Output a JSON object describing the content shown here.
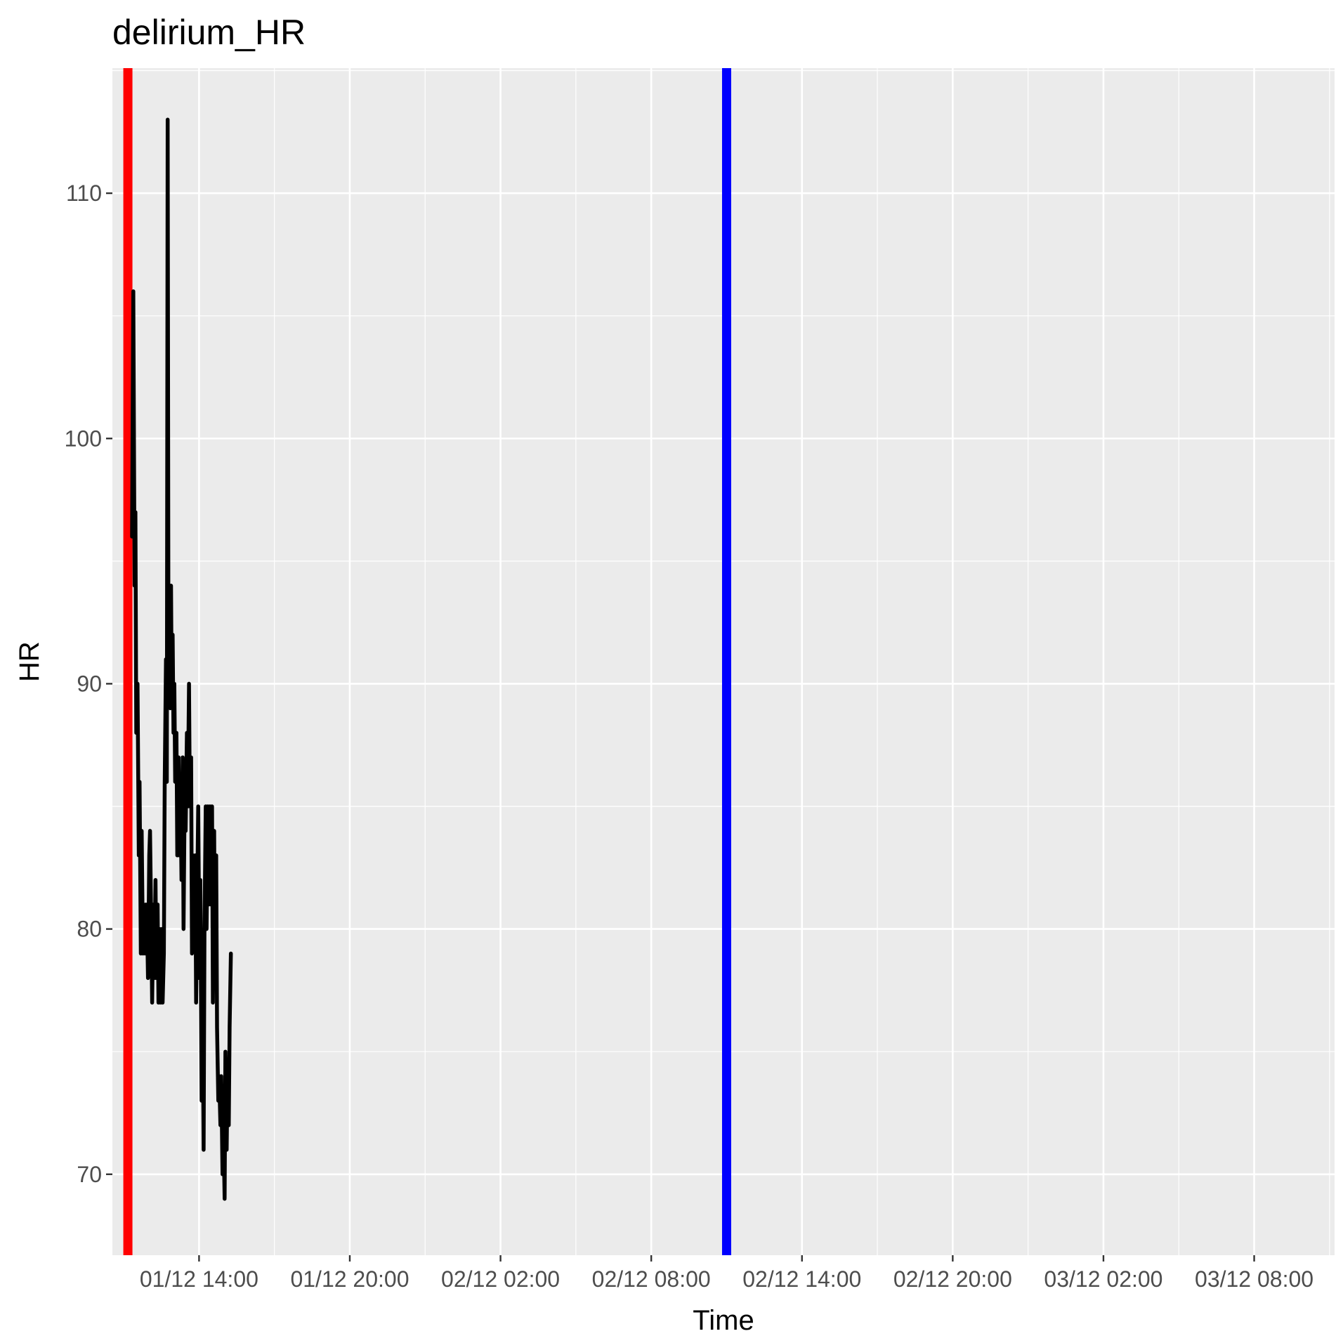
{
  "chart_data": {
    "type": "line",
    "title": "delirium_HR",
    "xlabel": "Time",
    "ylabel": "HR",
    "x_ticks": [
      "01/12 14:00",
      "01/12 20:00",
      "02/12 02:00",
      "02/12 08:00",
      "02/12 14:00",
      "02/12 20:00",
      "03/12 02:00",
      "03/12 08:00"
    ],
    "y_ticks": [
      70,
      80,
      90,
      100,
      110
    ],
    "xlim": [
      "2023-12-01T10:33",
      "2023-12-03T11:12"
    ],
    "ylim": [
      66.7,
      115.1
    ],
    "grid": true,
    "vlines": [
      {
        "x": "2023-12-01T11:10",
        "color": "#ff0000"
      },
      {
        "x": "2023-12-02T11:00",
        "color": "#0000ff"
      }
    ],
    "series": [
      {
        "color": "#000000",
        "points": [
          [
            "2023-12-01T11:20",
            96
          ],
          [
            "2023-12-01T11:23",
            106
          ],
          [
            "2023-12-01T11:26",
            94
          ],
          [
            "2023-12-01T11:28",
            97
          ],
          [
            "2023-12-01T11:30",
            88
          ],
          [
            "2023-12-01T11:33",
            90
          ],
          [
            "2023-12-01T11:36",
            83
          ],
          [
            "2023-12-01T11:38",
            86
          ],
          [
            "2023-12-01T11:41",
            79
          ],
          [
            "2023-12-01T11:43",
            84
          ],
          [
            "2023-12-01T11:46",
            79
          ],
          [
            "2023-12-01T11:48",
            81
          ],
          [
            "2023-12-01T11:51",
            79
          ],
          [
            "2023-12-01T11:53",
            81
          ],
          [
            "2023-12-01T11:56",
            80
          ],
          [
            "2023-12-01T11:58",
            78
          ],
          [
            "2023-12-01T12:01",
            83
          ],
          [
            "2023-12-01T12:03",
            84
          ],
          [
            "2023-12-01T12:06",
            80
          ],
          [
            "2023-12-01T12:08",
            77
          ],
          [
            "2023-12-01T12:11",
            81
          ],
          [
            "2023-12-01T12:13",
            78
          ],
          [
            "2023-12-01T12:16",
            82
          ],
          [
            "2023-12-01T12:18",
            78
          ],
          [
            "2023-12-01T12:21",
            81
          ],
          [
            "2023-12-01T12:23",
            77
          ],
          [
            "2023-12-01T12:26",
            80
          ],
          [
            "2023-12-01T12:28",
            77
          ],
          [
            "2023-12-01T12:31",
            80
          ],
          [
            "2023-12-01T12:33",
            77
          ],
          [
            "2023-12-01T12:36",
            79
          ],
          [
            "2023-12-01T12:38",
            86
          ],
          [
            "2023-12-01T12:41",
            91
          ],
          [
            "2023-12-01T12:43",
            86
          ],
          [
            "2023-12-01T12:45",
            113
          ],
          [
            "2023-12-01T12:47",
            90
          ],
          [
            "2023-12-01T12:49",
            94
          ],
          [
            "2023-12-01T12:51",
            89
          ],
          [
            "2023-12-01T12:53",
            94
          ],
          [
            "2023-12-01T12:55",
            89
          ],
          [
            "2023-12-01T12:57",
            92
          ],
          [
            "2023-12-01T12:59",
            88
          ],
          [
            "2023-12-01T13:01",
            90
          ],
          [
            "2023-12-01T13:03",
            86
          ],
          [
            "2023-12-01T13:06",
            88
          ],
          [
            "2023-12-01T13:08",
            83
          ],
          [
            "2023-12-01T13:11",
            87
          ],
          [
            "2023-12-01T13:13",
            83
          ],
          [
            "2023-12-01T13:16",
            85
          ],
          [
            "2023-12-01T13:18",
            82
          ],
          [
            "2023-12-01T13:21",
            87
          ],
          [
            "2023-12-01T13:23",
            80
          ],
          [
            "2023-12-01T13:26",
            86
          ],
          [
            "2023-12-01T13:28",
            84
          ],
          [
            "2023-12-01T13:31",
            88
          ],
          [
            "2023-12-01T13:33",
            85
          ],
          [
            "2023-12-01T13:36",
            90
          ],
          [
            "2023-12-01T13:38",
            85
          ],
          [
            "2023-12-01T13:41",
            87
          ],
          [
            "2023-12-01T13:43",
            79
          ],
          [
            "2023-12-01T13:46",
            83
          ],
          [
            "2023-12-01T13:48",
            81
          ],
          [
            "2023-12-01T13:51",
            83
          ],
          [
            "2023-12-01T13:53",
            77
          ],
          [
            "2023-12-01T13:56",
            82
          ],
          [
            "2023-12-01T13:58",
            85
          ],
          [
            "2023-12-01T14:01",
            78
          ],
          [
            "2023-12-01T14:03",
            82
          ],
          [
            "2023-12-01T14:06",
            73
          ],
          [
            "2023-12-01T14:08",
            78
          ],
          [
            "2023-12-01T14:11",
            71
          ],
          [
            "2023-12-01T14:13",
            80
          ],
          [
            "2023-12-01T14:16",
            85
          ],
          [
            "2023-12-01T14:18",
            80
          ],
          [
            "2023-12-01T14:21",
            85
          ],
          [
            "2023-12-01T14:23",
            81
          ],
          [
            "2023-12-01T14:26",
            85
          ],
          [
            "2023-12-01T14:28",
            81
          ],
          [
            "2023-12-01T14:31",
            85
          ],
          [
            "2023-12-01T14:33",
            77
          ],
          [
            "2023-12-01T14:36",
            84
          ],
          [
            "2023-12-01T14:38",
            78
          ],
          [
            "2023-12-01T14:41",
            83
          ],
          [
            "2023-12-01T14:43",
            76
          ],
          [
            "2023-12-01T14:46",
            73
          ],
          [
            "2023-12-01T14:48",
            74
          ],
          [
            "2023-12-01T14:51",
            72
          ],
          [
            "2023-12-01T14:53",
            74
          ],
          [
            "2023-12-01T14:56",
            70
          ],
          [
            "2023-12-01T14:58",
            72
          ],
          [
            "2023-12-01T15:01",
            69
          ],
          [
            "2023-12-01T15:03",
            75
          ],
          [
            "2023-12-01T15:06",
            71
          ],
          [
            "2023-12-01T15:08",
            74
          ],
          [
            "2023-12-01T15:11",
            72
          ],
          [
            "2023-12-01T15:13",
            76
          ],
          [
            "2023-12-01T15:16",
            79
          ]
        ]
      }
    ]
  }
}
